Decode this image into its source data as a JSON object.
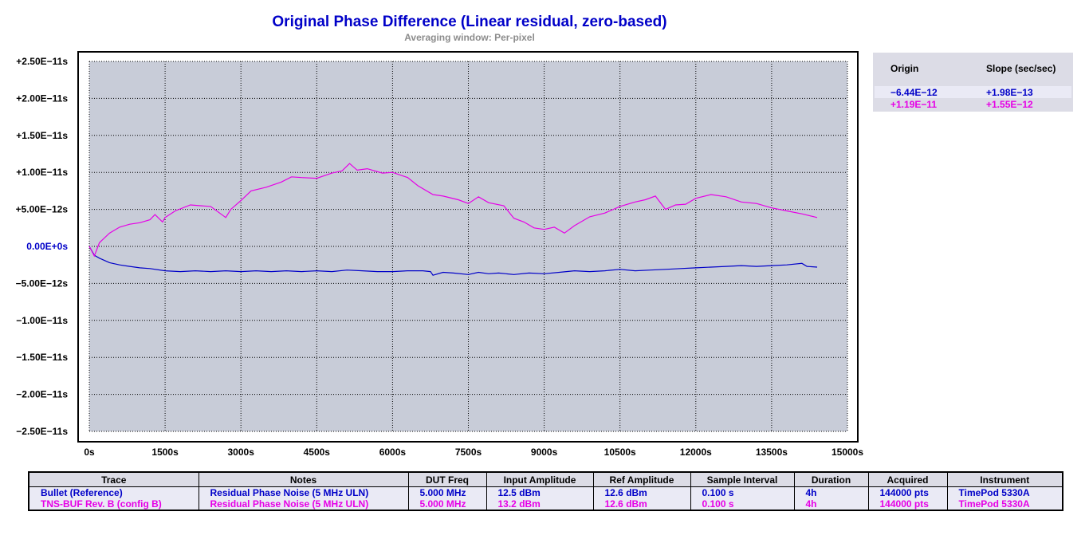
{
  "header": {
    "title": "Original Phase Difference (Linear residual, zero-based)",
    "subtitle": "Averaging window: Per-pixel"
  },
  "fit": {
    "origin_label": "Origin",
    "slope_label": "Slope (sec/sec)",
    "rows": [
      {
        "origin": "−6.44E−12",
        "slope": "+1.98E−13",
        "color": "#0000c8"
      },
      {
        "origin": "+1.19E−11",
        "slope": "+1.55E−12",
        "color": "#e600e6"
      }
    ]
  },
  "table": {
    "headers": [
      "Trace",
      "Notes",
      "DUT Freq",
      "Input Amplitude",
      "Ref Amplitude",
      "Sample Interval",
      "Duration",
      "Acquired",
      "Instrument"
    ],
    "rows": [
      {
        "color": "#0000c8",
        "cells": [
          "Bullet (Reference)",
          "Residual Phase Noise (5 MHz ULN)",
          "5.000 MHz",
          "12.5 dBm",
          "12.6 dBm",
          "0.100 s",
          "4h",
          "144000 pts",
          "TimePod 5330A"
        ]
      },
      {
        "color": "#e600e6",
        "cells": [
          "TNS-BUF Rev. B (config B)",
          "Residual Phase Noise (5 MHz ULN)",
          "5.000 MHz",
          "13.2 dBm",
          "12.6 dBm",
          "0.100 s",
          "4h",
          "144000 pts",
          "TimePod 5330A"
        ]
      }
    ]
  },
  "chart_data": {
    "type": "line",
    "title": "Original Phase Difference (Linear residual, zero-based)",
    "subtitle": "Averaging window: Per-pixel",
    "xlim": [
      0,
      15000
    ],
    "ylim": [
      -2.5e-11,
      2.5e-11
    ],
    "x_ticks": [
      0,
      1500,
      3000,
      4500,
      6000,
      7500,
      9000,
      10500,
      12000,
      13500,
      15000
    ],
    "x_tick_labels": [
      "0s",
      "1500s",
      "3000s",
      "4500s",
      "6000s",
      "7500s",
      "9000s",
      "10500s",
      "12000s",
      "13500s",
      "15000s"
    ],
    "y_ticks": [
      2.5e-11,
      2e-11,
      1.5e-11,
      1e-11,
      5e-12,
      0,
      -5e-12,
      -1e-11,
      -1.5e-11,
      -2e-11,
      -2.5e-11
    ],
    "y_tick_labels": [
      "+2.50E−11s",
      "+2.00E−11s",
      "+1.50E−11s",
      "+1.00E−11s",
      "+5.00E−12s",
      "0.00E+0s",
      "−5.00E−12s",
      "−1.00E−11s",
      "−1.50E−11s",
      "−2.00E−11s",
      "−2.50E−11s"
    ],
    "grid": true,
    "plot_background": "#c8ccd8",
    "series": [
      {
        "name": "Bullet (Reference)",
        "color": "#0000c8",
        "x": [
          0,
          100,
          200,
          400,
          600,
          800,
          1000,
          1200,
          1500,
          1800,
          2100,
          2400,
          2700,
          3000,
          3300,
          3600,
          3900,
          4200,
          4500,
          4800,
          5100,
          5400,
          5700,
          6000,
          6300,
          6600,
          6750,
          6800,
          7000,
          7200,
          7500,
          7700,
          7900,
          8100,
          8400,
          8700,
          9000,
          9300,
          9600,
          9900,
          10200,
          10500,
          10800,
          11100,
          11400,
          11700,
          12000,
          12300,
          12600,
          12900,
          13200,
          13500,
          13800,
          14100,
          14200,
          14400
        ],
        "y": [
          0,
          -1.2e-12,
          -1.6e-12,
          -2.2e-12,
          -2.5e-12,
          -2.7e-12,
          -2.9e-12,
          -3e-12,
          -3.3e-12,
          -3.4e-12,
          -3.3e-12,
          -3.4e-12,
          -3.3e-12,
          -3.4e-12,
          -3.3e-12,
          -3.4e-12,
          -3.3e-12,
          -3.4e-12,
          -3.3e-12,
          -3.4e-12,
          -3.2e-12,
          -3.3e-12,
          -3.4e-12,
          -3.4e-12,
          -3.3e-12,
          -3.3e-12,
          -3.4e-12,
          -3.9e-12,
          -3.5e-12,
          -3.6e-12,
          -3.8e-12,
          -3.5e-12,
          -3.7e-12,
          -3.6e-12,
          -3.8e-12,
          -3.6e-12,
          -3.7e-12,
          -3.5e-12,
          -3.3e-12,
          -3.4e-12,
          -3.3e-12,
          -3.1e-12,
          -3.3e-12,
          -3.2e-12,
          -3.1e-12,
          -3e-12,
          -2.9e-12,
          -2.8e-12,
          -2.7e-12,
          -2.6e-12,
          -2.7e-12,
          -2.6e-12,
          -2.5e-12,
          -2.3e-12,
          -2.7e-12,
          -2.8e-12
        ]
      },
      {
        "name": "TNS-BUF Rev. B (config B)",
        "color": "#e600e6",
        "x": [
          0,
          100,
          200,
          400,
          600,
          800,
          1000,
          1200,
          1300,
          1450,
          1500,
          1700,
          2000,
          2200,
          2400,
          2700,
          2800,
          3000,
          3200,
          3500,
          3800,
          4000,
          4200,
          4500,
          4800,
          5000,
          5150,
          5300,
          5500,
          5800,
          6000,
          6300,
          6500,
          6800,
          7000,
          7300,
          7500,
          7700,
          7900,
          8200,
          8400,
          8600,
          8800,
          9000,
          9200,
          9400,
          9600,
          9900,
          10200,
          10500,
          10800,
          11000,
          11200,
          11400,
          11600,
          11800,
          12000,
          12300,
          12600,
          12900,
          13200,
          13500,
          13800,
          14100,
          14400
        ],
        "y": [
          0,
          -1.3e-12,
          5e-13,
          1.8e-12,
          2.6e-12,
          3e-12,
          3.2e-12,
          3.6e-12,
          4.3e-12,
          3.3e-12,
          3.9e-12,
          4.8e-12,
          5.6e-12,
          5.5e-12,
          5.4e-12,
          3.9e-12,
          5e-12,
          6.2e-12,
          7.5e-12,
          8e-12,
          8.7e-12,
          9.4e-12,
          9.3e-12,
          9.2e-12,
          9.9e-12,
          1.02e-11,
          1.12e-11,
          1.03e-11,
          1.05e-11,
          9.9e-12,
          1e-11,
          9.3e-12,
          8.2e-12,
          7e-12,
          6.8e-12,
          6.3e-12,
          5.8e-12,
          6.7e-12,
          5.9e-12,
          5.5e-12,
          3.8e-12,
          3.3e-12,
          2.5e-12,
          2.3e-12,
          2.6e-12,
          1.8e-12,
          2.8e-12,
          4e-12,
          4.5e-12,
          5.4e-12,
          6e-12,
          6.3e-12,
          6.8e-12,
          5e-12,
          5.6e-12,
          5.7e-12,
          6.5e-12,
          7e-12,
          6.7e-12,
          6e-12,
          5.8e-12,
          5.2e-12,
          4.8e-12,
          4.4e-12,
          3.9e-12
        ]
      }
    ]
  }
}
